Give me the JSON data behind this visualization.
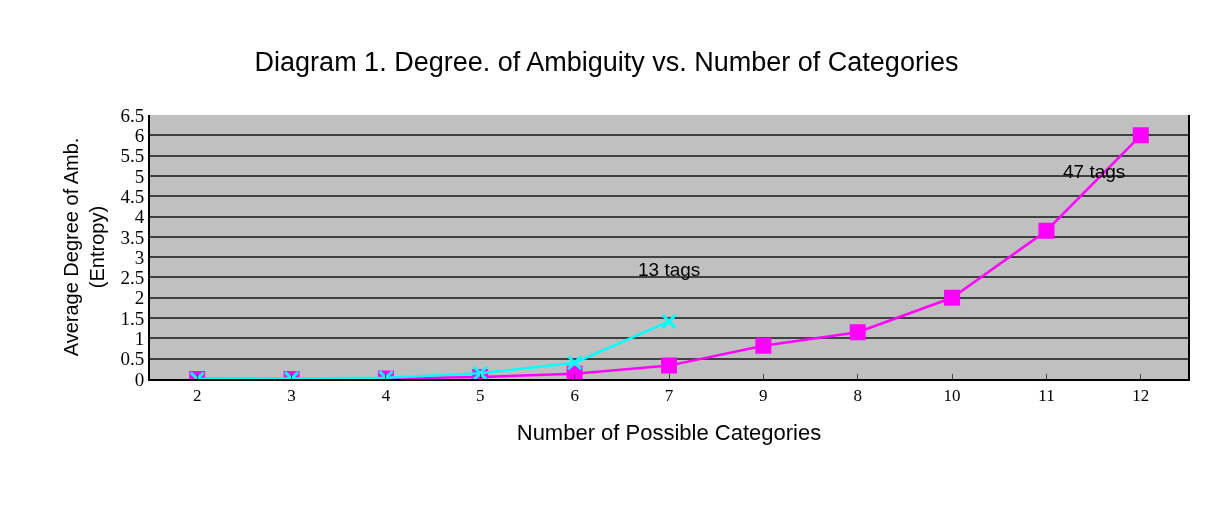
{
  "chart_data": {
    "type": "line",
    "title": "Diagram 1. Degree. of Ambiguity vs. Number of Categories",
    "xlabel": "Number of Possible Categories",
    "ylabel": "Average Degree of Amb.\n(Entropy)",
    "categories": [
      "2",
      "3",
      "4",
      "5",
      "6",
      "7",
      "9",
      "8",
      "10",
      "11",
      "12"
    ],
    "series": [
      {
        "color": "#ff00ff",
        "marker": "square",
        "values": [
          0,
          0,
          0.01,
          0.05,
          0.13,
          0.33,
          0.82,
          1.15,
          2.0,
          3.65,
          6.0
        ]
      },
      {
        "color": "#00ffff",
        "marker": "cross",
        "values": [
          0,
          0.01,
          0.03,
          0.14,
          0.4,
          1.42,
          null,
          null,
          null,
          null,
          null
        ]
      }
    ],
    "annotations": [
      {
        "text": "13 tags",
        "x": "7",
        "y": 1.42
      },
      {
        "text": "47 tags",
        "x": "12",
        "y": 6.0
      }
    ],
    "ylim": [
      0,
      6.5
    ],
    "yticks": [
      0,
      0.5,
      1,
      1.5,
      2,
      2.5,
      3,
      3.5,
      4,
      4.5,
      5,
      5.5,
      6,
      6.5
    ],
    "grid": "y",
    "line_style": "solid"
  }
}
